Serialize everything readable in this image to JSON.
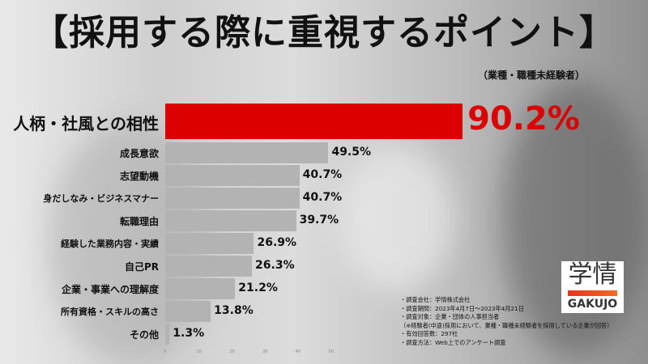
{
  "title": "【採用する際に重視するポイント】",
  "subtitle": "（業種・職種未経験者）",
  "chart_data": {
    "type": "bar",
    "orientation": "horizontal",
    "categories": [
      "人柄・社風との相性",
      "成長意欲",
      "志望動機",
      "身だしなみ・ビジネスマナー",
      "転職理由",
      "経験した業務内容・実績",
      "自己PR",
      "企業・事業への理解度",
      "所有資格・スキルの高さ",
      "その他"
    ],
    "values": [
      90.2,
      49.5,
      40.7,
      40.7,
      39.7,
      26.9,
      26.3,
      21.2,
      13.8,
      1.3
    ],
    "value_labels": [
      "90.2%",
      "49.5%",
      "40.7%",
      "40.7%",
      "39.7%",
      "26.9%",
      "26.3%",
      "21.2%",
      "13.8%",
      "1.3%"
    ],
    "x_ticks": [
      "0",
      "10",
      "20",
      "30",
      "40",
      "50"
    ],
    "highlight_color": "#dd0000",
    "bar_color": "#b3b3b4"
  },
  "notes": [
    "・調査会社：学情株式会社",
    "・調査期間：2023年4月7日～2023年4月21日",
    "・調査対象：企業・団体の人事担当者",
    "（※経験者(中途)採用において、業種・職種未経験者を採用している企業が回答）",
    "・有効回答数：297社",
    "・調査方法：Web上でのアンケート調査"
  ],
  "logo": {
    "kanji": "学情",
    "roman": "GAKUJO"
  }
}
